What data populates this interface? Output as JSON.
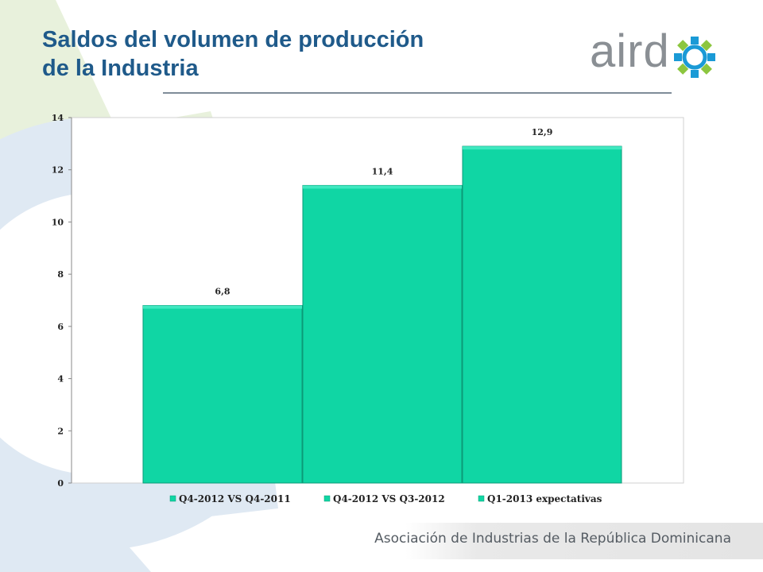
{
  "slide": {
    "title_line1": "Saldos del volumen de producción",
    "title_line2": "de la Industria",
    "logo_text": "aird",
    "logo_icon": "gear-icon",
    "footer": "Asociación de Industrias de la República Dominicana"
  },
  "colors": {
    "title": "#1f5a8a",
    "bar_fill": "#10d6a4",
    "bar_top": "#3fe8c0",
    "gear_light_blue": "#dfe9f3",
    "gear_light_green": "#e8f1dc"
  },
  "chart_data": {
    "type": "bar",
    "categories": [
      "Q4-2012 VS Q4-2011",
      "Q4-2012 VS Q3-2012",
      "Q1-2013 expectativas"
    ],
    "series": [
      {
        "values": [
          6.8,
          11.4,
          12.9
        ]
      }
    ],
    "data_labels": [
      "6,8",
      "11,4",
      "12,9"
    ],
    "yticks": [
      0,
      2,
      4,
      6,
      8,
      10,
      12,
      14
    ],
    "ylim": [
      0,
      14
    ],
    "legend": {
      "position": "bottom",
      "entries": [
        "Q4-2012 VS Q4-2011",
        "Q4-2012 VS Q3-2012",
        "Q1-2013 expectativas"
      ]
    },
    "grid": false,
    "title": "",
    "xlabel": "",
    "ylabel": ""
  }
}
